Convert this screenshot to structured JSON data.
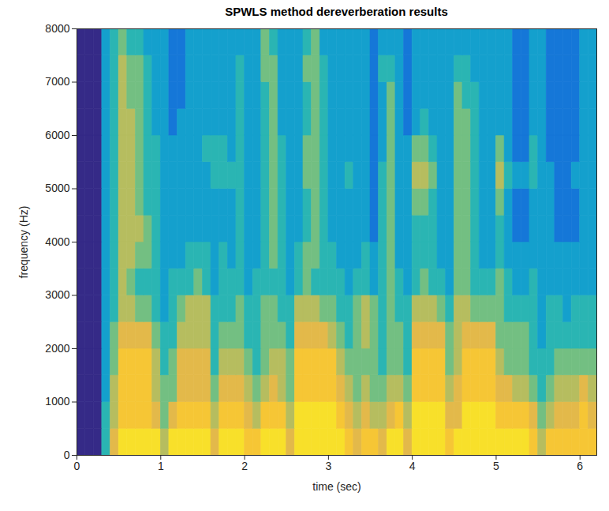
{
  "chart_data": {
    "type": "heatmap",
    "title": "SPWLS method dereverberation results",
    "xlabel": "time (sec)",
    "ylabel": "frequency (Hz)",
    "xlim": [
      0,
      6.2
    ],
    "ylim": [
      0,
      8000
    ],
    "xticks": [
      0,
      1,
      2,
      3,
      4,
      5,
      6
    ],
    "yticks": [
      0,
      1000,
      2000,
      3000,
      4000,
      5000,
      6000,
      7000,
      8000
    ],
    "time_bins": [
      0,
      0.1,
      0.2,
      0.3,
      0.4,
      0.5,
      0.6,
      0.7,
      0.8,
      0.9,
      1.0,
      1.1,
      1.2,
      1.3,
      1.4,
      1.5,
      1.6,
      1.7,
      1.8,
      1.9,
      2.0,
      2.1,
      2.2,
      2.3,
      2.4,
      2.5,
      2.6,
      2.7,
      2.8,
      2.9,
      3.0,
      3.1,
      3.2,
      3.3,
      3.4,
      3.5,
      3.6,
      3.7,
      3.8,
      3.9,
      4.0,
      4.1,
      4.2,
      4.3,
      4.4,
      4.5,
      4.6,
      4.7,
      4.8,
      4.9,
      5.0,
      5.1,
      5.2,
      5.3,
      5.4,
      5.5,
      5.6,
      5.7,
      5.8,
      5.9,
      6.0,
      6.1,
      6.2
    ],
    "frequency_bins": [
      0,
      500,
      1000,
      1500,
      2000,
      2500,
      3000,
      3500,
      4000,
      4500,
      5000,
      5500,
      6000,
      6500,
      7000,
      7500,
      8000
    ],
    "cells": [
      [
        0,
        0,
        0,
        4,
        7,
        9,
        9,
        9,
        9,
        9,
        6,
        9,
        9,
        9,
        9,
        9,
        7,
        9,
        9,
        9,
        8,
        8,
        9,
        9,
        9,
        7,
        9,
        9,
        9,
        9,
        9,
        9,
        8,
        7,
        8,
        8,
        7,
        9,
        9,
        7,
        9,
        9,
        9,
        9,
        8,
        9,
        9,
        9,
        9,
        9,
        9,
        9,
        9,
        9,
        8,
        6,
        8,
        8,
        8,
        8,
        8,
        8
      ],
      [
        0,
        0,
        0,
        4,
        6,
        8,
        8,
        8,
        8,
        7,
        5,
        7,
        8,
        8,
        8,
        8,
        6,
        8,
        8,
        8,
        7,
        6,
        8,
        8,
        8,
        6,
        9,
        9,
        9,
        9,
        9,
        8,
        7,
        6,
        7,
        6,
        6,
        7,
        8,
        6,
        9,
        9,
        9,
        9,
        7,
        7,
        9,
        9,
        9,
        9,
        8,
        8,
        8,
        8,
        7,
        5,
        6,
        7,
        7,
        7,
        8,
        7
      ],
      [
        0,
        0,
        0,
        3,
        6,
        8,
        8,
        8,
        8,
        6,
        5,
        5,
        7,
        7,
        7,
        7,
        5,
        7,
        7,
        7,
        6,
        5,
        6,
        7,
        6,
        5,
        8,
        8,
        8,
        8,
        8,
        7,
        6,
        5,
        6,
        5,
        5,
        6,
        6,
        5,
        8,
        8,
        8,
        8,
        6,
        7,
        8,
        8,
        8,
        8,
        7,
        7,
        6,
        6,
        5,
        4,
        5,
        6,
        6,
        6,
        7,
        6
      ],
      [
        0,
        0,
        0,
        3,
        5,
        8,
        8,
        8,
        8,
        6,
        4,
        5,
        7,
        7,
        7,
        7,
        4,
        6,
        6,
        6,
        5,
        4,
        5,
        6,
        6,
        5,
        8,
        8,
        8,
        8,
        8,
        6,
        5,
        5,
        5,
        5,
        4,
        5,
        5,
        4,
        8,
        8,
        8,
        8,
        5,
        6,
        8,
        8,
        8,
        8,
        6,
        5,
        5,
        5,
        4,
        4,
        4,
        5,
        5,
        5,
        5,
        5
      ],
      [
        0,
        0,
        0,
        3,
        5,
        7,
        7,
        7,
        7,
        5,
        4,
        4,
        6,
        6,
        6,
        6,
        4,
        5,
        5,
        5,
        4,
        4,
        5,
        5,
        5,
        4,
        7,
        7,
        7,
        7,
        6,
        5,
        4,
        5,
        6,
        5,
        4,
        5,
        5,
        4,
        7,
        7,
        7,
        7,
        5,
        6,
        7,
        7,
        7,
        7,
        5,
        5,
        5,
        5,
        4,
        3,
        4,
        4,
        4,
        4,
        4,
        4
      ],
      [
        0,
        0,
        0,
        3,
        4,
        6,
        6,
        5,
        5,
        4,
        3,
        4,
        5,
        6,
        6,
        6,
        4,
        4,
        4,
        5,
        4,
        4,
        5,
        5,
        4,
        4,
        6,
        6,
        6,
        5,
        5,
        4,
        4,
        5,
        6,
        5,
        4,
        5,
        4,
        4,
        6,
        6,
        6,
        5,
        4,
        6,
        6,
        5,
        5,
        5,
        5,
        4,
        4,
        4,
        4,
        3,
        4,
        4,
        3,
        4,
        4,
        4
      ],
      [
        0,
        0,
        0,
        3,
        4,
        6,
        5,
        4,
        4,
        4,
        3,
        4,
        4,
        4,
        5,
        4,
        3,
        4,
        4,
        4,
        3,
        4,
        4,
        4,
        4,
        3,
        4,
        5,
        4,
        4,
        4,
        4,
        3,
        4,
        4,
        3,
        4,
        5,
        4,
        3,
        4,
        5,
        4,
        4,
        3,
        5,
        5,
        4,
        4,
        4,
        5,
        4,
        3,
        3,
        4,
        3,
        3,
        3,
        3,
        3,
        3,
        3
      ],
      [
        0,
        0,
        0,
        3,
        4,
        6,
        6,
        5,
        5,
        4,
        3,
        3,
        3,
        4,
        4,
        4,
        3,
        4,
        3,
        4,
        3,
        3,
        4,
        5,
        4,
        3,
        4,
        5,
        5,
        4,
        4,
        3,
        3,
        3,
        4,
        3,
        4,
        5,
        3,
        3,
        4,
        4,
        4,
        3,
        3,
        5,
        5,
        4,
        3,
        3,
        4,
        3,
        3,
        3,
        3,
        3,
        3,
        3,
        3,
        3,
        3,
        3
      ],
      [
        0,
        0,
        0,
        3,
        4,
        6,
        6,
        6,
        5,
        4,
        3,
        3,
        3,
        3,
        3,
        3,
        3,
        3,
        3,
        4,
        3,
        3,
        4,
        5,
        4,
        3,
        3,
        4,
        5,
        4,
        3,
        3,
        3,
        3,
        3,
        2,
        4,
        5,
        3,
        3,
        4,
        4,
        4,
        3,
        3,
        5,
        5,
        4,
        3,
        3,
        4,
        3,
        2,
        2,
        3,
        3,
        3,
        2,
        2,
        2,
        3,
        3
      ],
      [
        0,
        0,
        0,
        3,
        4,
        6,
        6,
        5,
        4,
        4,
        3,
        3,
        3,
        3,
        3,
        3,
        3,
        3,
        3,
        4,
        3,
        3,
        4,
        5,
        4,
        3,
        3,
        4,
        5,
        4,
        3,
        3,
        3,
        3,
        3,
        2,
        4,
        5,
        3,
        3,
        5,
        5,
        4,
        3,
        3,
        5,
        5,
        4,
        3,
        3,
        5,
        3,
        2,
        2,
        3,
        3,
        3,
        2,
        2,
        2,
        3,
        3
      ],
      [
        0,
        0,
        0,
        3,
        4,
        6,
        6,
        5,
        4,
        4,
        3,
        3,
        3,
        3,
        3,
        3,
        4,
        4,
        4,
        4,
        3,
        3,
        4,
        5,
        4,
        3,
        3,
        5,
        5,
        4,
        3,
        3,
        4,
        3,
        3,
        2,
        4,
        5,
        3,
        3,
        6,
        6,
        5,
        3,
        3,
        5,
        5,
        4,
        3,
        3,
        6,
        4,
        3,
        3,
        4,
        3,
        3,
        2,
        2,
        3,
        3,
        3
      ],
      [
        0,
        0,
        0,
        3,
        4,
        6,
        6,
        5,
        4,
        4,
        3,
        3,
        3,
        3,
        3,
        4,
        4,
        4,
        3,
        4,
        3,
        3,
        4,
        5,
        4,
        3,
        3,
        5,
        5,
        4,
        3,
        3,
        3,
        3,
        3,
        2,
        3,
        5,
        3,
        3,
        5,
        5,
        4,
        3,
        3,
        5,
        5,
        4,
        3,
        3,
        5,
        3,
        2,
        2,
        4,
        3,
        2,
        2,
        2,
        2,
        3,
        3
      ],
      [
        0,
        0,
        0,
        3,
        4,
        6,
        6,
        5,
        4,
        3,
        3,
        2,
        3,
        3,
        3,
        3,
        3,
        3,
        3,
        4,
        3,
        3,
        4,
        5,
        3,
        3,
        3,
        4,
        5,
        4,
        3,
        3,
        3,
        3,
        3,
        2,
        3,
        5,
        3,
        2,
        3,
        4,
        3,
        3,
        3,
        5,
        5,
        4,
        3,
        3,
        3,
        3,
        2,
        2,
        3,
        3,
        2,
        2,
        2,
        2,
        3,
        3
      ],
      [
        0,
        0,
        0,
        3,
        4,
        6,
        5,
        5,
        4,
        3,
        3,
        2,
        2,
        3,
        3,
        3,
        3,
        3,
        3,
        4,
        3,
        3,
        4,
        5,
        3,
        3,
        3,
        4,
        5,
        4,
        3,
        3,
        3,
        3,
        3,
        2,
        3,
        5,
        3,
        2,
        3,
        3,
        3,
        3,
        3,
        5,
        4,
        4,
        3,
        3,
        3,
        3,
        2,
        2,
        3,
        3,
        2,
        2,
        2,
        2,
        3,
        3
      ],
      [
        0,
        0,
        0,
        3,
        4,
        6,
        5,
        5,
        4,
        3,
        3,
        2,
        2,
        3,
        3,
        3,
        3,
        3,
        3,
        4,
        3,
        3,
        5,
        5,
        3,
        3,
        3,
        5,
        5,
        4,
        3,
        3,
        3,
        3,
        3,
        2,
        4,
        4,
        3,
        2,
        3,
        3,
        3,
        3,
        3,
        4,
        4,
        3,
        3,
        3,
        3,
        3,
        2,
        2,
        3,
        3,
        2,
        2,
        2,
        2,
        3,
        3
      ],
      [
        0,
        0,
        0,
        3,
        4,
        5,
        4,
        4,
        3,
        3,
        3,
        2,
        2,
        3,
        3,
        3,
        3,
        3,
        3,
        3,
        3,
        3,
        5,
        4,
        3,
        3,
        3,
        4,
        5,
        3,
        3,
        3,
        3,
        3,
        3,
        2,
        3,
        3,
        3,
        2,
        3,
        3,
        3,
        3,
        3,
        3,
        3,
        3,
        3,
        3,
        3,
        3,
        2,
        2,
        3,
        3,
        2,
        2,
        2,
        2,
        3,
        3
      ]
    ]
  }
}
